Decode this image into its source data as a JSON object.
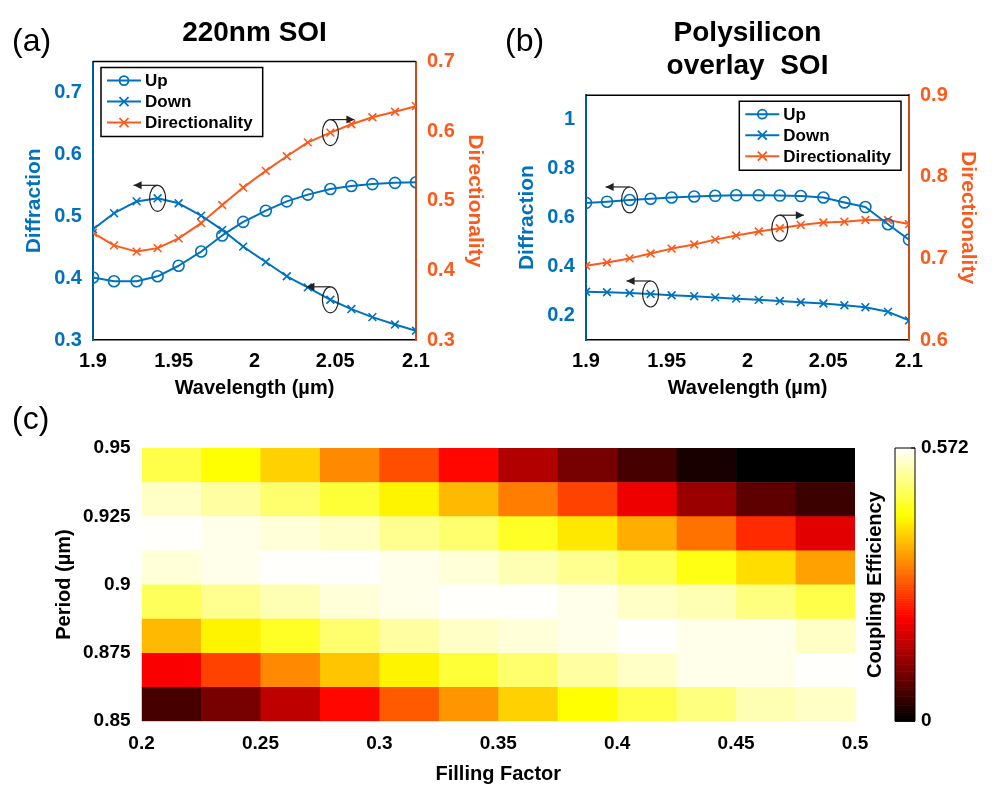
{
  "chart_data": [
    {
      "type": "line",
      "title": "220nm SOI",
      "xlabel": "Wavelength (µm)",
      "ylabel": "Diffraction",
      "y2label": "Directionality",
      "annotations": [
        "(a)"
      ],
      "x": [
        1.9,
        1.913,
        1.927,
        1.94,
        1.953,
        1.967,
        1.98,
        1.993,
        2.007,
        2.02,
        2.033,
        2.047,
        2.06,
        2.073,
        2.087,
        2.1
      ],
      "series": [
        {
          "name": "Up",
          "color": "#0072bd",
          "marker": "circle",
          "values": [
            0.401,
            0.395,
            0.395,
            0.403,
            0.42,
            0.443,
            0.469,
            0.491,
            0.509,
            0.524,
            0.535,
            0.544,
            0.549,
            0.552,
            0.554,
            0.555
          ]
        },
        {
          "name": "Down",
          "color": "#0072bd",
          "marker": "cross",
          "values": [
            0.479,
            0.505,
            0.524,
            0.529,
            0.521,
            0.501,
            0.478,
            0.451,
            0.426,
            0.403,
            0.385,
            0.365,
            0.35,
            0.337,
            0.325,
            0.315
          ]
        },
        {
          "name": "Directionality",
          "color": "#fc5a1c",
          "marker": "cross",
          "axis": "y2",
          "values": [
            0.454,
            0.436,
            0.427,
            0.432,
            0.446,
            0.468,
            0.494,
            0.519,
            0.543,
            0.564,
            0.584,
            0.598,
            0.61,
            0.62,
            0.628,
            0.636
          ]
        }
      ],
      "xlim": [
        1.9,
        2.1
      ],
      "xticks": [
        1.9,
        1.95,
        2,
        2.05,
        2.1
      ],
      "ylim": [
        0.3,
        0.75
      ],
      "yticks": [
        0.3,
        0.4,
        0.5,
        0.6,
        0.7
      ],
      "y2lim": [
        0.3,
        0.7
      ],
      "y2ticks": [
        0.3,
        0.4,
        0.5,
        0.6,
        0.7
      ],
      "legend": "top left",
      "line_style": "solid"
    },
    {
      "type": "line",
      "title": "Polysilicon overlay  SOI",
      "xlabel": "Wavelength (µm)",
      "ylabel": "Diffraction",
      "y2label": "Directionality",
      "annotations": [
        "(b)"
      ],
      "x": [
        1.9,
        1.913,
        1.927,
        1.94,
        1.953,
        1.967,
        1.98,
        1.993,
        2.007,
        2.02,
        2.033,
        2.047,
        2.06,
        2.073,
        2.087,
        2.1
      ],
      "series": [
        {
          "name": "Up",
          "color": "#0072bd",
          "marker": "circle",
          "values": [
            0.66,
            0.665,
            0.672,
            0.677,
            0.682,
            0.686,
            0.689,
            0.691,
            0.691,
            0.69,
            0.688,
            0.682,
            0.662,
            0.643,
            0.573,
            0.51
          ]
        },
        {
          "name": "Down",
          "color": "#0072bd",
          "marker": "cross",
          "values": [
            0.297,
            0.295,
            0.292,
            0.288,
            0.283,
            0.279,
            0.274,
            0.269,
            0.264,
            0.259,
            0.254,
            0.249,
            0.242,
            0.234,
            0.215,
            0.18
          ]
        },
        {
          "name": "Directionality",
          "color": "#fc5a1c",
          "marker": "cross",
          "axis": "y2",
          "values": [
            0.691,
            0.695,
            0.7,
            0.706,
            0.712,
            0.717,
            0.723,
            0.728,
            0.733,
            0.737,
            0.741,
            0.744,
            0.745,
            0.747,
            0.747,
            0.742
          ]
        }
      ],
      "xlim": [
        1.9,
        2.1
      ],
      "xticks": [
        1.9,
        1.95,
        2,
        2.05,
        2.1
      ],
      "ylim": [
        0.1,
        1.1
      ],
      "yticks": [
        0.2,
        0.4,
        0.6,
        0.8,
        1
      ],
      "y2lim": [
        0.6,
        0.9
      ],
      "y2ticks": [
        0.6,
        0.7,
        0.8,
        0.9
      ],
      "legend": "top right",
      "line_style": "solid"
    },
    {
      "type": "heatmap",
      "xlabel": "Filling Factor",
      "ylabel": "Period (µm)",
      "clabel": "Coupling Efficiency",
      "annotations": [
        "(c)"
      ],
      "x": [
        0.2125,
        0.2375,
        0.2625,
        0.2875,
        0.3125,
        0.3375,
        0.3625,
        0.3875,
        0.4125,
        0.4375,
        0.4625,
        0.4875
      ],
      "y": [
        0.94375,
        0.93125,
        0.91875,
        0.90625,
        0.89375,
        0.88125,
        0.86875,
        0.85625
      ],
      "cells": [
        [
          0.47,
          0.43,
          0.39,
          0.33,
          0.28,
          0.22,
          0.15,
          0.1,
          0.06,
          0.02,
          0,
          0
        ],
        [
          0.54,
          0.52,
          0.49,
          0.46,
          0.42,
          0.37,
          0.32,
          0.27,
          0.2,
          0.13,
          0.08,
          0.05
        ],
        [
          0.57,
          0.56,
          0.55,
          0.54,
          0.51,
          0.49,
          0.45,
          0.41,
          0.36,
          0.31,
          0.25,
          0.19
        ],
        [
          0.55,
          0.56,
          0.57,
          0.57,
          0.56,
          0.55,
          0.53,
          0.51,
          0.48,
          0.44,
          0.4,
          0.35
        ],
        [
          0.48,
          0.51,
          0.53,
          0.55,
          0.56,
          0.57,
          0.57,
          0.56,
          0.54,
          0.53,
          0.5,
          0.47
        ],
        [
          0.37,
          0.42,
          0.45,
          0.49,
          0.52,
          0.54,
          0.55,
          0.56,
          0.57,
          0.56,
          0.56,
          0.54
        ],
        [
          0.21,
          0.27,
          0.33,
          0.38,
          0.42,
          0.46,
          0.49,
          0.52,
          0.54,
          0.56,
          0.56,
          0.57
        ],
        [
          0.06,
          0.1,
          0.16,
          0.22,
          0.29,
          0.34,
          0.39,
          0.43,
          0.47,
          0.5,
          0.53,
          0.54
        ]
      ],
      "xlim": [
        0.2,
        0.5
      ],
      "xticks": [
        0.2,
        0.25,
        0.3,
        0.35,
        0.4,
        0.45,
        0.5
      ],
      "ylim": [
        0.85,
        0.95
      ],
      "yticks": [
        0.85,
        0.875,
        0.9,
        0.925,
        0.95
      ],
      "clim": [
        0,
        0.572
      ],
      "cticks": [
        0,
        0.572
      ]
    }
  ]
}
